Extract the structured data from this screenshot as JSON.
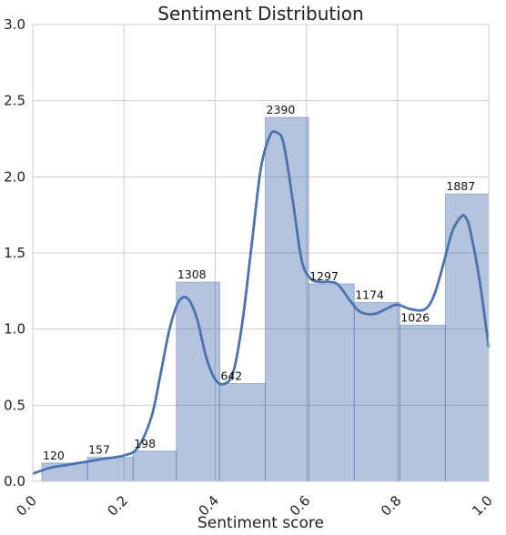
{
  "chart_data": {
    "type": "bar",
    "title": "Sentiment Distribution",
    "xlabel": "Sentiment score",
    "ylabel": "",
    "xlim": [
      0.0,
      1.0
    ],
    "ylim": [
      0.0,
      3.0
    ],
    "grid": true,
    "x_ticks": [
      "0.0",
      "0.2",
      "0.4",
      "0.6",
      "0.8",
      "1.0"
    ],
    "y_ticks": [
      "0.0",
      "0.5",
      "1.0",
      "1.5",
      "2.0",
      "2.5",
      "3.0"
    ],
    "bars": [
      {
        "x0": 0.02,
        "x1": 0.12,
        "density": 0.12,
        "label": "120"
      },
      {
        "x0": 0.12,
        "x1": 0.22,
        "density": 0.157,
        "label": "157"
      },
      {
        "x0": 0.22,
        "x1": 0.315,
        "density": 0.198,
        "label": "198"
      },
      {
        "x0": 0.315,
        "x1": 0.41,
        "density": 1.308,
        "label": "1308"
      },
      {
        "x0": 0.41,
        "x1": 0.51,
        "density": 0.642,
        "label": "642"
      },
      {
        "x0": 0.51,
        "x1": 0.605,
        "density": 2.39,
        "label": "2390"
      },
      {
        "x0": 0.605,
        "x1": 0.705,
        "density": 1.297,
        "label": "1297"
      },
      {
        "x0": 0.705,
        "x1": 0.805,
        "density": 1.174,
        "label": "1174"
      },
      {
        "x0": 0.805,
        "x1": 0.905,
        "density": 1.026,
        "label": "1026"
      },
      {
        "x0": 0.905,
        "x1": 1.0,
        "density": 1.887,
        "label": "1887"
      }
    ],
    "kde": {
      "x": [
        0.0,
        0.04,
        0.08,
        0.12,
        0.16,
        0.2,
        0.23,
        0.26,
        0.28,
        0.3,
        0.32,
        0.34,
        0.36,
        0.38,
        0.4,
        0.42,
        0.44,
        0.46,
        0.48,
        0.5,
        0.52,
        0.535,
        0.55,
        0.57,
        0.59,
        0.61,
        0.63,
        0.65,
        0.67,
        0.7,
        0.72,
        0.75,
        0.78,
        0.8,
        0.83,
        0.86,
        0.88,
        0.9,
        0.92,
        0.94,
        0.95,
        0.96,
        0.98,
        1.0
      ],
      "y": [
        0.05,
        0.09,
        0.11,
        0.13,
        0.15,
        0.17,
        0.22,
        0.42,
        0.7,
        1.0,
        1.18,
        1.2,
        1.07,
        0.82,
        0.67,
        0.64,
        0.72,
        1.05,
        1.55,
        2.05,
        2.27,
        2.29,
        2.22,
        1.85,
        1.45,
        1.33,
        1.31,
        1.31,
        1.29,
        1.17,
        1.11,
        1.1,
        1.14,
        1.16,
        1.13,
        1.13,
        1.22,
        1.42,
        1.64,
        1.74,
        1.73,
        1.64,
        1.32,
        0.88
      ]
    }
  }
}
